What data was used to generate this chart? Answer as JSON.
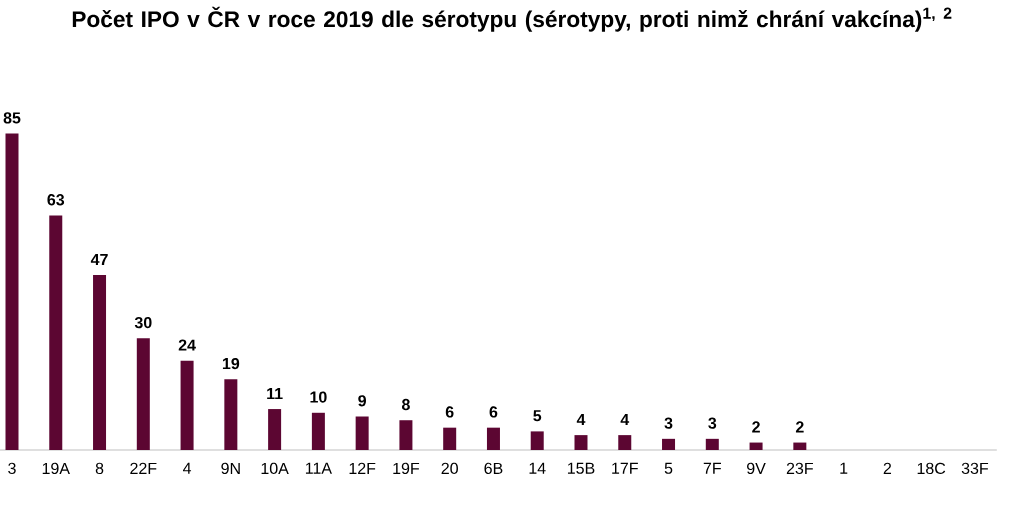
{
  "chart_data": {
    "type": "bar",
    "title": "Počet IPO v ČR v roce 2019 dle sérotypu (sérotypy, proti nimž chrání vakcína)$^{1, 2}$",
    "categories": [
      "3",
      "19A",
      "8",
      "22F",
      "4",
      "9N",
      "10A",
      "11A",
      "12F",
      "19F",
      "20",
      "6B",
      "14",
      "15B",
      "17F",
      "5",
      "7F",
      "9V",
      "23F",
      "1",
      "2",
      "18C",
      "33F"
    ],
    "values": [
      85,
      63,
      47,
      30,
      24,
      19,
      11,
      10,
      9,
      8,
      6,
      6,
      5,
      4,
      4,
      3,
      3,
      2,
      2,
      0,
      0,
      0,
      0
    ],
    "value_labels": [
      "85",
      "63",
      "47",
      "30",
      "24",
      "19",
      "11",
      "10",
      "9",
      "8",
      "6",
      "6",
      "5",
      "4",
      "4",
      "3",
      "3",
      "2",
      "2",
      null,
      null,
      null,
      null
    ],
    "color": "#5c0632"
  }
}
